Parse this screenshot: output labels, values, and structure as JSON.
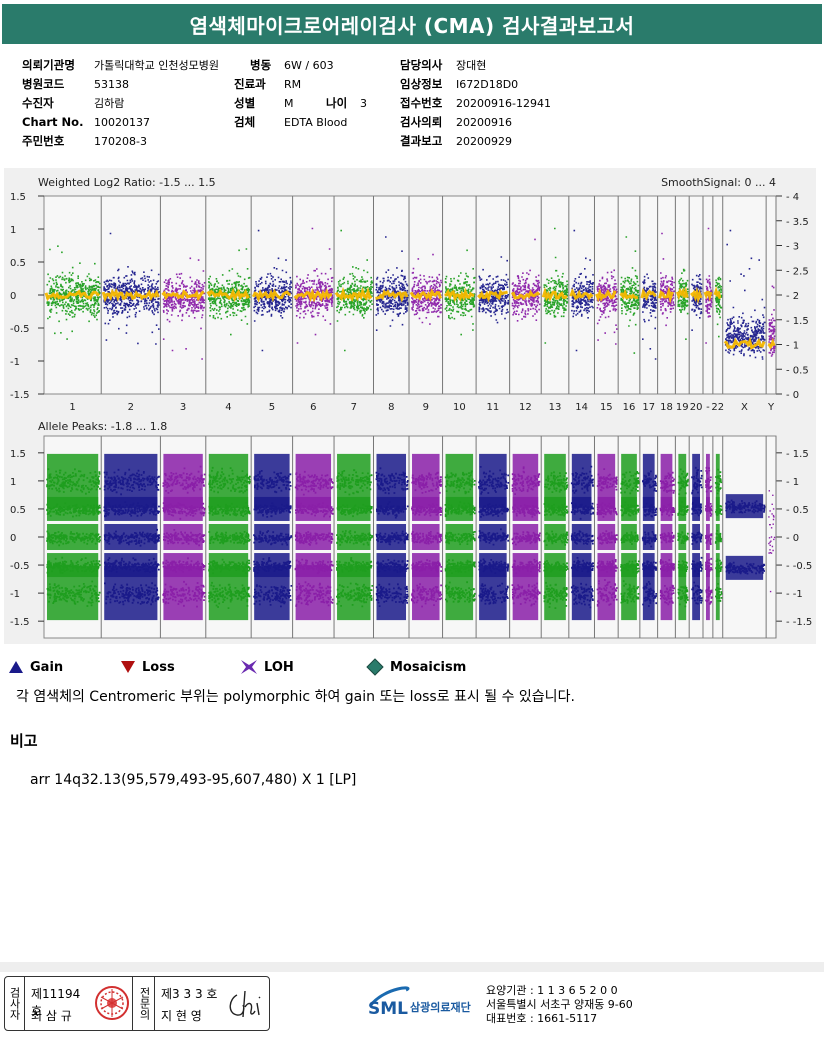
{
  "report": {
    "title": "염색체마이크로어레이검사 (CMA) 검사결과보고서"
  },
  "patient_info": {
    "institution_label": "의뢰기관명",
    "institution": "가톨릭대학교 인천성모병원",
    "ward_label": "병동",
    "ward": "6W / 603",
    "doctor_label": "담당의사",
    "doctor": "장대현",
    "hospital_code_label": "병원코드",
    "hospital_code": "53138",
    "dept_label": "진료과",
    "dept": "RM",
    "clinical_label": "임상정보",
    "clinical": "I672D18D0",
    "examinee_label": "수진자",
    "examinee": "김하람",
    "sex_label": "성별",
    "sex": "M",
    "age_label": "나이",
    "age": "3",
    "receipt_label": "접수번호",
    "receipt": "20200916-12941",
    "chart_label": "Chart No.",
    "chart": "10020137",
    "specimen_label": "검체",
    "specimen": "EDTA Blood",
    "request_label": "검사의뢰",
    "request": "20200916",
    "id_label": "주민번호",
    "id": "170208-3",
    "result_label": "결과보고",
    "result": "20200929"
  },
  "chart_data": [
    {
      "type": "scatter",
      "title": "Weighted Log2 Ratio: -1.5 ... 1.5",
      "right_title": "SmoothSignal: 0 ... 4",
      "ylim": [
        -1.5,
        1.5
      ],
      "y_ticks": [
        "1.5",
        "1",
        "0.5",
        "0",
        "-0.5",
        "-1",
        "-1.5"
      ],
      "right_ylim": [
        0,
        4
      ],
      "right_ticks": [
        "4",
        "3.5",
        "3",
        "2.5",
        "2",
        "1.5",
        "1",
        "0.5",
        "0"
      ],
      "x_tick_labels": [
        "1",
        "2",
        "3",
        "4",
        "5",
        "6",
        "7",
        "8",
        "9",
        "10",
        "11",
        "12",
        "13",
        "14",
        "15",
        "16",
        "17",
        "18",
        "19",
        "20",
        "22",
        "X",
        "Y"
      ],
      "series_colors": [
        "#1e9e1e",
        "#1a1a8a",
        "#8a1fa8"
      ],
      "smooth_color": "#f5b800",
      "smooth_signal_autosomes": 2,
      "smooth_signal_x": 1,
      "grid": true
    },
    {
      "type": "scatter",
      "title": "Allele Peaks: -1.8 ... 1.8",
      "ylim": [
        -1.8,
        1.8
      ],
      "y_ticks": [
        "1.5",
        "1",
        "0.5",
        "0",
        "-0.5",
        "-1",
        "-1.5"
      ],
      "right_ticks": [
        "1.5",
        "1",
        "0.5",
        "0",
        "-0.5",
        "-1",
        "-1.5"
      ],
      "bands": [
        1,
        0.5,
        0,
        -0.5,
        -1
      ],
      "x_tick_labels": [],
      "grid": true
    }
  ],
  "chromosomes": [
    {
      "label": "1",
      "c": "#1e9e1e"
    },
    {
      "label": "2",
      "c": "#1a1a8a"
    },
    {
      "label": "3",
      "c": "#8a1fa8"
    },
    {
      "label": "4",
      "c": "#1e9e1e"
    },
    {
      "label": "5",
      "c": "#1a1a8a"
    },
    {
      "label": "6",
      "c": "#8a1fa8"
    },
    {
      "label": "7",
      "c": "#1e9e1e"
    },
    {
      "label": "8",
      "c": "#1a1a8a"
    },
    {
      "label": "9",
      "c": "#8a1fa8"
    },
    {
      "label": "10",
      "c": "#1e9e1e"
    },
    {
      "label": "11",
      "c": "#1a1a8a"
    },
    {
      "label": "12",
      "c": "#8a1fa8"
    },
    {
      "label": "13",
      "c": "#1e9e1e"
    },
    {
      "label": "14",
      "c": "#1a1a8a"
    },
    {
      "label": "15",
      "c": "#8a1fa8"
    },
    {
      "label": "16",
      "c": "#1e9e1e"
    },
    {
      "label": "17",
      "c": "#1a1a8a"
    },
    {
      "label": "18",
      "c": "#8a1fa8"
    },
    {
      "label": "19",
      "c": "#1e9e1e"
    },
    {
      "label": "20",
      "c": "#1a1a8a"
    },
    {
      "label": "",
      "c": "#8a1fa8"
    },
    {
      "label": "22",
      "c": "#1e9e1e"
    },
    {
      "label": "X",
      "c": "#1a1a8a"
    },
    {
      "label": "Y",
      "c": "#8a1fa8"
    }
  ],
  "legend": {
    "gain": "Gain",
    "loss": "Loss",
    "loh": "LOH",
    "mosaicism": "Mosaicism",
    "colors": {
      "gain": "#1a1a8a",
      "loss": "#b01010",
      "loh": "#6a2ab0",
      "mosaicism": "#2a7b6b"
    }
  },
  "note": "각 염색체의 Centromeric 부위는 polymorphic 하여 gain 또는 loss로 표시 될 수 있습니다.",
  "remarks": {
    "title": "비고",
    "text": "arr 14q32.13(95,579,493-95,607,480) X 1 [LP]"
  },
  "signature": {
    "examiner_label": "검사자",
    "examiner_no": "제11194호",
    "examiner_name": "최 삼 규",
    "specialist_label": "전문의",
    "specialist_no": "제3 3 3 호",
    "specialist_name": "지 현 영"
  },
  "organization": {
    "logo_text": "SML",
    "name": "삼광의료재단",
    "code_line": "요양기관 : 1 1 3 6 5 2 0 0",
    "address_line": "서울특별시 서초구 양재동 9-60",
    "phone_line": "대표번호 : 1661-5117"
  }
}
